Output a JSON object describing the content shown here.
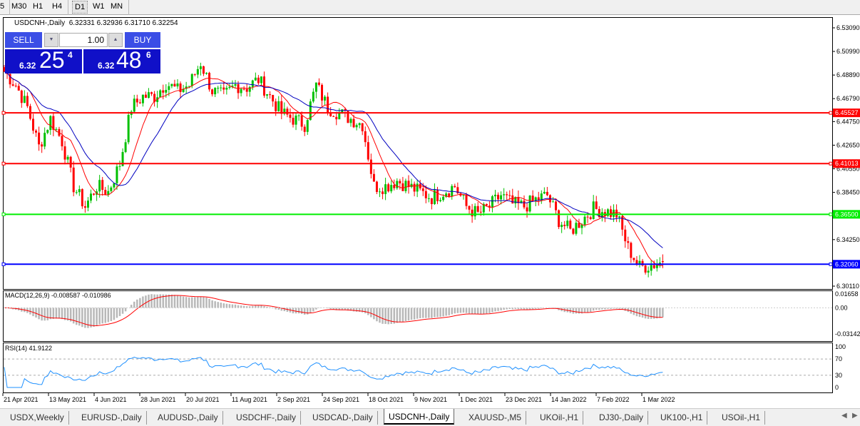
{
  "timeframes": [
    "5",
    "M30",
    "H1",
    "H4",
    "D1",
    "W1",
    "MN"
  ],
  "active_timeframe": "D1",
  "chart": {
    "title": "USDCNH-,Daily",
    "ohlc": "6.32331 6.32936 6.31710 6.32254",
    "trade_panel": {
      "sell_label": "SELL",
      "buy_label": "BUY",
      "lot": "1.00",
      "sell_prefix": "6.32",
      "sell_big": "25",
      "sell_sup": "4",
      "buy_prefix": "6.32",
      "buy_big": "48",
      "buy_sup": "6"
    },
    "price_axis": [
      "6.53090",
      "6.50990",
      "6.48890",
      "6.46790",
      "6.44750",
      "6.42650",
      "6.40550",
      "6.38450",
      "6.34250",
      "6.30110"
    ],
    "price_range": [
      6.3011,
      6.5309
    ],
    "hlines": [
      {
        "price": 6.45527,
        "label": "6.45527",
        "color": "#ff0000"
      },
      {
        "price": 6.41013,
        "label": "6.41013",
        "color": "#ff0000"
      },
      {
        "price": 6.365,
        "label": "6.36500",
        "color": "#00ee00"
      },
      {
        "price": 6.3206,
        "label": "6.32060",
        "color": "#0000ff"
      }
    ],
    "closes_every_4_bars": [
      6.492,
      6.48,
      6.46,
      6.425,
      6.45,
      6.43,
      6.39,
      6.372,
      6.39,
      6.385,
      6.41,
      6.46,
      6.47,
      6.47,
      6.482,
      6.475,
      6.48,
      6.5,
      6.475,
      6.47,
      6.48,
      6.478,
      6.485,
      6.47,
      6.455,
      6.45,
      6.445,
      6.48,
      6.46,
      6.455,
      6.45,
      6.445,
      6.39,
      6.39,
      6.395,
      6.39,
      6.385,
      6.38,
      6.385,
      6.39,
      6.372,
      6.365,
      6.372,
      6.382,
      6.374,
      6.372,
      6.378,
      6.382,
      6.36,
      6.35,
      6.36,
      6.37,
      6.368,
      6.365,
      6.335,
      6.318,
      6.32,
      6.32254
    ],
    "colors": {
      "bull": "#00c000",
      "bear": "#ff0000",
      "ma_fast": "#ff0000",
      "ma_slow": "#0000c0"
    }
  },
  "macd": {
    "label": "MACD(12,26,9) -0.008587 -0.010986",
    "axis": [
      "0.01658",
      "0.00",
      "-0.03142"
    ],
    "range": [
      -0.03142,
      0.01658
    ]
  },
  "rsi": {
    "label": "RSI(14) 41.9122",
    "axis": [
      "100",
      "70",
      "30",
      "0"
    ],
    "levels": [
      70,
      30
    ]
  },
  "dates": [
    "21 Apr 2021",
    "13 May 2021",
    "4 Jun 2021",
    "28 Jun 2021",
    "20 Jul 2021",
    "11 Aug 2021",
    "2 Sep 2021",
    "24 Sep 2021",
    "18 Oct 2021",
    "9 Nov 2021",
    "1 Dec 2021",
    "23 Dec 2021",
    "14 Jan 2022",
    "7 Feb 2022",
    "1 Mar 2022"
  ],
  "tabs": [
    "USDX,Weekly",
    "EURUSD-,Daily",
    "AUDUSD-,Daily",
    "USDCHF-,Daily",
    "USDCAD-,Daily",
    "USDCNH-,Daily",
    "XAUUSD-,M5",
    "UKOil-,H1",
    "DJ30-,Daily",
    "UK100-,H1",
    "USOil-,H1"
  ],
  "active_tab": "USDCNH-,Daily"
}
